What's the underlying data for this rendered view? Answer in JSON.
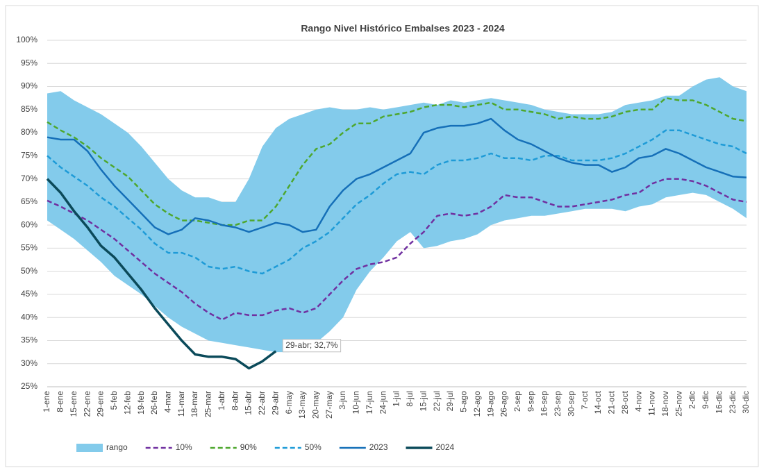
{
  "chart_data": {
    "type": "line",
    "title": "Rango Nivel Histórico Embalses 2023 - 2024",
    "categories": [
      "1-ene",
      "8-ene",
      "15-ene",
      "22-ene",
      "29-ene",
      "5-feb",
      "12-feb",
      "19-feb",
      "26-feb",
      "4-mar",
      "11-mar",
      "18-mar",
      "25-mar",
      "1-abr",
      "8-abr",
      "15-abr",
      "22-abr",
      "29-abr",
      "6-may",
      "13-may",
      "20-may",
      "27-may",
      "3-jun",
      "10-jun",
      "17-jun",
      "24-jun",
      "1-jul",
      "8-jul",
      "15-jul",
      "22-jul",
      "29-jul",
      "5-ago",
      "12-ago",
      "19-ago",
      "26-ago",
      "2-sep",
      "9-sep",
      "16-sep",
      "23-sep",
      "30-sep",
      "7-oct",
      "14-oct",
      "21-oct",
      "28-oct",
      "4-nov",
      "11-nov",
      "18-nov",
      "25-nov",
      "2-dic",
      "9-dic",
      "16-dic",
      "23-dic",
      "30-dic"
    ],
    "series": [
      {
        "name": "rango",
        "color": "#83cbeb",
        "area": true,
        "values": [
          88.5,
          89,
          87,
          85.5,
          84,
          82,
          80,
          77,
          73.5,
          70,
          67.5,
          66,
          66,
          65,
          65,
          70,
          77,
          81,
          83,
          84,
          85,
          85.5,
          85,
          85,
          85.5,
          85,
          85.5,
          86,
          86.5,
          86,
          87,
          86.5,
          87,
          87.5,
          87,
          86.5,
          86,
          85,
          84.5,
          84,
          84,
          84,
          84.5,
          86,
          86.5,
          87,
          88,
          88,
          90,
          91.5,
          92,
          90,
          89
        ],
        "low": [
          61,
          59,
          57,
          54.5,
          52,
          49,
          47,
          45,
          42.5,
          40,
          38,
          36.5,
          35,
          34.5,
          34,
          33.5,
          33,
          32.5,
          32.5,
          33.5,
          34.5,
          37,
          40,
          46,
          50,
          53,
          56.5,
          58.5,
          55,
          55.5,
          56.5,
          57,
          58,
          60,
          61,
          61.5,
          62,
          62,
          62.5,
          63,
          63.5,
          63.5,
          63.5,
          63,
          64,
          64.5,
          66,
          66.5,
          67,
          66.5,
          65,
          63.5,
          61.5
        ]
      },
      {
        "name": "10%",
        "color": "#7030a0",
        "dashed": true,
        "values": [
          65.3,
          64,
          62.5,
          61,
          59,
          57,
          54.5,
          52,
          49.5,
          47.5,
          45.5,
          43,
          41,
          39.5,
          41,
          40.5,
          40.5,
          41.5,
          42,
          41,
          42,
          45,
          48,
          50.5,
          51.5,
          52,
          53,
          56,
          58.5,
          62,
          62.5,
          62,
          62.5,
          64,
          66.5,
          66,
          66,
          65,
          64,
          64,
          64.5,
          65,
          65.5,
          66.5,
          67,
          69,
          70,
          70,
          69.5,
          68.5,
          67,
          65.5,
          65
        ]
      },
      {
        "name": "90%",
        "color": "#4ea72e",
        "dashed": true,
        "values": [
          82.3,
          80.5,
          79,
          77,
          74.5,
          72.5,
          70.5,
          67.5,
          64.5,
          62.5,
          61,
          61,
          60.5,
          60,
          60,
          61,
          61,
          64,
          68.5,
          73,
          76.5,
          77.5,
          80,
          82,
          82,
          83.5,
          84,
          84.5,
          85.5,
          86,
          86,
          85.5,
          86,
          86.5,
          85,
          85,
          84.5,
          84,
          83,
          83.5,
          83,
          83,
          83.5,
          84.5,
          85,
          85,
          87.5,
          87,
          87,
          86,
          84.5,
          83,
          82.5
        ]
      },
      {
        "name": "50%",
        "color": "#1e9bd7",
        "dashed": true,
        "values": [
          75,
          72.5,
          70.5,
          68.5,
          66,
          64,
          61.5,
          59,
          56,
          54,
          54,
          53,
          51,
          50.5,
          51,
          50,
          49.5,
          51,
          52.5,
          55,
          56.5,
          58.5,
          61.5,
          64.5,
          66.5,
          69,
          71,
          71.5,
          71,
          73,
          74,
          74,
          74.5,
          75.5,
          74.5,
          74.5,
          74,
          75,
          75,
          74,
          74,
          74,
          74.5,
          75.5,
          77,
          78.5,
          80.5,
          80.5,
          79.5,
          78.5,
          77.5,
          77,
          75.5
        ]
      },
      {
        "name": "2023",
        "color": "#156fb8",
        "values": [
          79,
          78.5,
          78.5,
          76,
          72,
          68.5,
          65.5,
          62.5,
          59.5,
          58,
          59,
          61.5,
          61,
          60,
          59.5,
          58.5,
          59.5,
          60.5,
          60,
          58.5,
          59,
          64,
          67.5,
          70,
          71,
          72.5,
          74,
          75.5,
          80,
          81,
          81.5,
          81.5,
          82,
          83,
          80.5,
          78.5,
          77.5,
          76,
          74.5,
          73.5,
          73,
          73,
          71.5,
          72.5,
          74.5,
          75,
          76.5,
          75.5,
          74,
          72.5,
          71.5,
          70.5,
          70.3
        ]
      },
      {
        "name": "2024",
        "color": "#0b4a5a",
        "thick": true,
        "values": [
          70,
          67,
          63,
          59.5,
          55.5,
          53,
          49.5,
          46,
          42,
          38.5,
          35,
          32,
          31.5,
          31.5,
          31,
          29,
          30.5,
          32.7,
          null,
          null,
          null,
          null,
          null,
          null,
          null,
          null,
          null,
          null,
          null,
          null,
          null,
          null,
          null,
          null,
          null,
          null,
          null,
          null,
          null,
          null,
          null,
          null,
          null,
          null,
          null,
          null,
          null,
          null,
          null,
          null,
          null,
          null,
          null
        ]
      }
    ],
    "annotation": "29-abr; 32,7%",
    "ylim": [
      25,
      100
    ],
    "yticks": [
      {
        "value": 25,
        "label": "25%"
      },
      {
        "value": 30,
        "label": "30%"
      },
      {
        "value": 35,
        "label": "35%"
      },
      {
        "value": 40,
        "label": "40%"
      },
      {
        "value": 45,
        "label": "45%"
      },
      {
        "value": 50,
        "label": "50%"
      },
      {
        "value": 55,
        "label": "55%"
      },
      {
        "value": 60,
        "label": "60%"
      },
      {
        "value": 65,
        "label": "65%"
      },
      {
        "value": 70,
        "label": "70%"
      },
      {
        "value": 75,
        "label": "75%"
      },
      {
        "value": 80,
        "label": "80%"
      },
      {
        "value": 85,
        "label": "85%"
      },
      {
        "value": 90,
        "label": "90%"
      },
      {
        "value": 95,
        "label": "95%"
      },
      {
        "value": 100,
        "label": "100%"
      }
    ],
    "grid": true
  }
}
